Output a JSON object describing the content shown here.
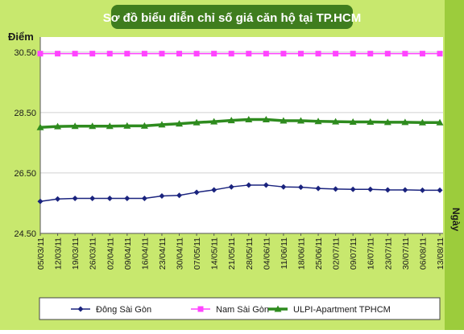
{
  "colors": {
    "frame_bg": "#c8e86e",
    "frame_right": "#9ccc3c",
    "plot_bg": "#ffffff",
    "title_bar": "#3f7d1e",
    "title_text": "#ffffff",
    "text": "#1a1a1a",
    "ylabel": "#1a1a1a",
    "grid": "#d0d0d0",
    "legend_bg": "#ffffff"
  },
  "chart_data": {
    "type": "line",
    "title": "Sơ đồ biểu diễn chỉ số giá căn hộ tại TP.HCM",
    "ylabel": "Điểm",
    "xlabel": "Ngày",
    "ylim": [
      24.5,
      31.0
    ],
    "yticks": [
      "24.50",
      "26.50",
      "28.50",
      "30.50"
    ],
    "ytick_values": [
      24.5,
      26.5,
      28.5,
      30.5
    ],
    "grid": true,
    "legend_position": "bottom",
    "categories": [
      "05/03/11",
      "12/03/11",
      "19/03/11",
      "26/03/11",
      "02/04/11",
      "09/04/11",
      "16/04/11",
      "23/04/11",
      "30/04/11",
      "07/05/11",
      "14/05/11",
      "21/05/11",
      "28/05/11",
      "04/06/11",
      "11/06/11",
      "18/06/11",
      "25/06/11",
      "02/07/11",
      "09/07/11",
      "16/07/11",
      "23/07/11",
      "30/07/11",
      "06/08/11",
      "13/08/11"
    ],
    "series": [
      {
        "name": "Đông Sài Gòn",
        "color": "#1a237e",
        "marker": "diamond",
        "stroke": 1.5,
        "values": [
          25.56,
          25.64,
          25.66,
          25.66,
          25.66,
          25.66,
          25.66,
          25.74,
          25.76,
          25.86,
          25.94,
          26.04,
          26.1,
          26.1,
          26.04,
          26.03,
          25.99,
          25.97,
          25.96,
          25.96,
          25.94,
          25.94,
          25.93,
          25.93
        ]
      },
      {
        "name": "Nam Sài Gòn",
        "color": "#ff44ff",
        "marker": "square",
        "stroke": 1.5,
        "values": [
          30.45,
          30.45,
          30.45,
          30.45,
          30.45,
          30.45,
          30.45,
          30.45,
          30.45,
          30.45,
          30.45,
          30.45,
          30.45,
          30.45,
          30.45,
          30.45,
          30.45,
          30.45,
          30.45,
          30.45,
          30.45,
          30.45,
          30.45,
          30.45
        ]
      },
      {
        "name": "ULPI-Apartment TPHCM",
        "color": "#2e8b1e",
        "marker": "triangle",
        "stroke": 3.5,
        "values": [
          28.01,
          28.04,
          28.05,
          28.05,
          28.05,
          28.06,
          28.06,
          28.1,
          28.13,
          28.17,
          28.2,
          28.24,
          28.27,
          28.27,
          28.23,
          28.23,
          28.21,
          28.2,
          28.19,
          28.19,
          28.18,
          28.18,
          28.17,
          28.17
        ]
      }
    ]
  }
}
